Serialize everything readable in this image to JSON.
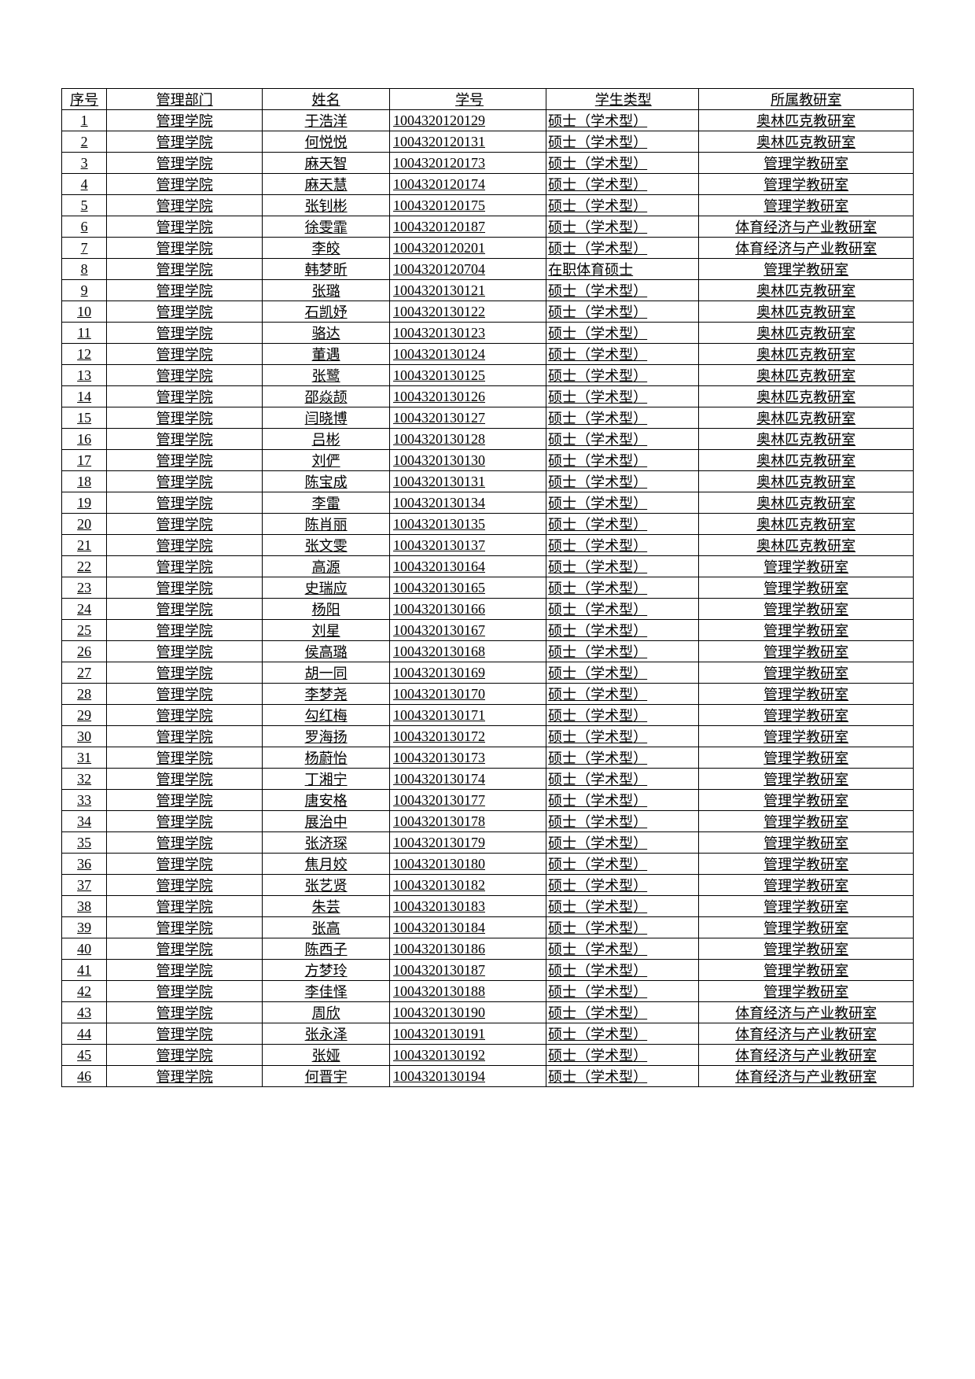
{
  "table": {
    "columns": [
      "序号",
      "管理部门",
      "姓名",
      "学号",
      "学生类型",
      "所属教研室"
    ],
    "rows": [
      [
        "1",
        "管理学院",
        "于浩洋",
        "1004320120129",
        "硕士（学术型）",
        "奥林匹克教研室"
      ],
      [
        "2",
        "管理学院",
        "何悦悦",
        "1004320120131",
        "硕士（学术型）",
        "奥林匹克教研室"
      ],
      [
        "3",
        "管理学院",
        "麻天智",
        "1004320120173",
        "硕士（学术型）",
        "管理学教研室"
      ],
      [
        "4",
        "管理学院",
        "麻天慧",
        "1004320120174",
        "硕士（学术型）",
        "管理学教研室"
      ],
      [
        "5",
        "管理学院",
        "张钊彬",
        "1004320120175",
        "硕士（学术型）",
        "管理学教研室"
      ],
      [
        "6",
        "管理学院",
        "徐雯霏",
        "1004320120187",
        "硕士（学术型）",
        "体育经济与产业教研室"
      ],
      [
        "7",
        "管理学院",
        "李皎",
        "1004320120201",
        "硕士（学术型）",
        "体育经济与产业教研室"
      ],
      [
        "8",
        "管理学院",
        "韩梦昕",
        "1004320120704",
        "在职体育硕士",
        "管理学教研室"
      ],
      [
        "9",
        "管理学院",
        "张璐",
        "1004320130121",
        "硕士（学术型）",
        "奥林匹克教研室"
      ],
      [
        "10",
        "管理学院",
        "石凯妤",
        "1004320130122",
        "硕士（学术型）",
        "奥林匹克教研室"
      ],
      [
        "11",
        "管理学院",
        "骆达",
        "1004320130123",
        "硕士（学术型）",
        "奥林匹克教研室"
      ],
      [
        "12",
        "管理学院",
        "董遇",
        "1004320130124",
        "硕士（学术型）",
        "奥林匹克教研室"
      ],
      [
        "13",
        "管理学院",
        "张鹭",
        "1004320130125",
        "硕士（学术型）",
        "奥林匹克教研室"
      ],
      [
        "14",
        "管理学院",
        "邵焱颉",
        "1004320130126",
        "硕士（学术型）",
        "奥林匹克教研室"
      ],
      [
        "15",
        "管理学院",
        "闫晓博",
        "1004320130127",
        "硕士（学术型）",
        "奥林匹克教研室"
      ],
      [
        "16",
        "管理学院",
        "吕彬",
        "1004320130128",
        "硕士（学术型）",
        "奥林匹克教研室"
      ],
      [
        "17",
        "管理学院",
        "刘俨",
        "1004320130130",
        "硕士（学术型）",
        "奥林匹克教研室"
      ],
      [
        "18",
        "管理学院",
        "陈宝成",
        "1004320130131",
        "硕士（学术型）",
        "奥林匹克教研室"
      ],
      [
        "19",
        "管理学院",
        "李雷",
        "1004320130134",
        "硕士（学术型）",
        "奥林匹克教研室"
      ],
      [
        "20",
        "管理学院",
        "陈肖丽",
        "1004320130135",
        "硕士（学术型）",
        "奥林匹克教研室"
      ],
      [
        "21",
        "管理学院",
        "张文雯",
        "1004320130137",
        "硕士（学术型）",
        "奥林匹克教研室"
      ],
      [
        "22",
        "管理学院",
        "高源",
        "1004320130164",
        "硕士（学术型）",
        "管理学教研室"
      ],
      [
        "23",
        "管理学院",
        "史瑞应",
        "1004320130165",
        "硕士（学术型）",
        "管理学教研室"
      ],
      [
        "24",
        "管理学院",
        "杨阳",
        "1004320130166",
        "硕士（学术型）",
        "管理学教研室"
      ],
      [
        "25",
        "管理学院",
        "刘星",
        "1004320130167",
        "硕士（学术型）",
        "管理学教研室"
      ],
      [
        "26",
        "管理学院",
        "侯高璐",
        "1004320130168",
        "硕士（学术型）",
        "管理学教研室"
      ],
      [
        "27",
        "管理学院",
        "胡一同",
        "1004320130169",
        "硕士（学术型）",
        "管理学教研室"
      ],
      [
        "28",
        "管理学院",
        "李梦尧",
        "1004320130170",
        "硕士（学术型）",
        "管理学教研室"
      ],
      [
        "29",
        "管理学院",
        "勾红梅",
        "1004320130171",
        "硕士（学术型）",
        "管理学教研室"
      ],
      [
        "30",
        "管理学院",
        "罗海扬",
        "1004320130172",
        "硕士（学术型）",
        "管理学教研室"
      ],
      [
        "31",
        "管理学院",
        "杨蔚怡",
        "1004320130173",
        "硕士（学术型）",
        "管理学教研室"
      ],
      [
        "32",
        "管理学院",
        "丁湘宁",
        "1004320130174",
        "硕士（学术型）",
        "管理学教研室"
      ],
      [
        "33",
        "管理学院",
        "唐安格",
        "1004320130177",
        "硕士（学术型）",
        "管理学教研室"
      ],
      [
        "34",
        "管理学院",
        "展治中",
        "1004320130178",
        "硕士（学术型）",
        "管理学教研室"
      ],
      [
        "35",
        "管理学院",
        "张济琛",
        "1004320130179",
        "硕士（学术型）",
        "管理学教研室"
      ],
      [
        "36",
        "管理学院",
        "焦月姣",
        "1004320130180",
        "硕士（学术型）",
        "管理学教研室"
      ],
      [
        "37",
        "管理学院",
        "张艺贤",
        "1004320130182",
        "硕士（学术型）",
        "管理学教研室"
      ],
      [
        "38",
        "管理学院",
        "朱芸",
        "1004320130183",
        "硕士（学术型）",
        "管理学教研室"
      ],
      [
        "39",
        "管理学院",
        "张高",
        "1004320130184",
        "硕士（学术型）",
        "管理学教研室"
      ],
      [
        "40",
        "管理学院",
        "陈西子",
        "1004320130186",
        "硕士（学术型）",
        "管理学教研室"
      ],
      [
        "41",
        "管理学院",
        "方梦玲",
        "1004320130187",
        "硕士（学术型）",
        "管理学教研室"
      ],
      [
        "42",
        "管理学院",
        "李佳怿",
        "1004320130188",
        "硕士（学术型）",
        "管理学教研室"
      ],
      [
        "43",
        "管理学院",
        "周欣",
        "1004320130190",
        "硕士（学术型）",
        "体育经济与产业教研室"
      ],
      [
        "44",
        "管理学院",
        "张永泽",
        "1004320130191",
        "硕士（学术型）",
        "体育经济与产业教研室"
      ],
      [
        "45",
        "管理学院",
        "张娅",
        "1004320130192",
        "硕士（学术型）",
        "体育经济与产业教研室"
      ],
      [
        "46",
        "管理学院",
        "何晋宇",
        "1004320130194",
        "硕士（学术型）",
        "体育经济与产业教研室"
      ]
    ]
  }
}
